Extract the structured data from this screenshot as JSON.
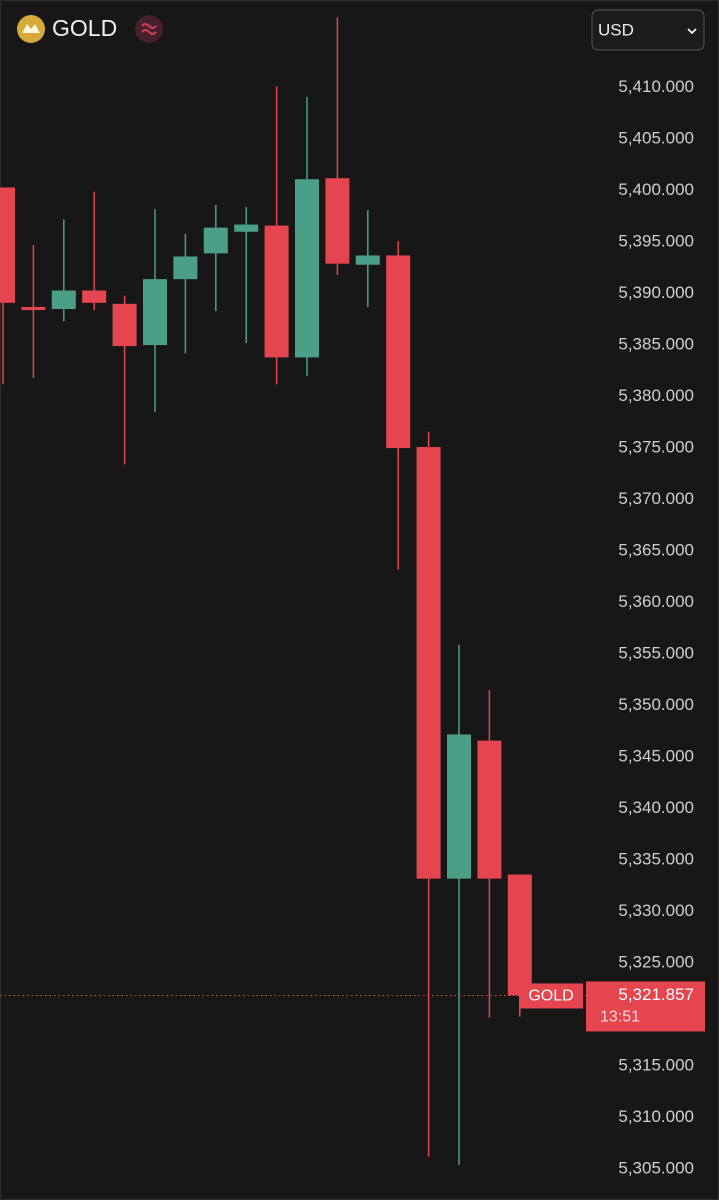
{
  "header": {
    "title": "GOLD",
    "currency": "USD"
  },
  "chart_data": {
    "type": "candlestick",
    "open": [
      5400.3,
      5388.7,
      5388.5,
      5390.3,
      5389.0,
      5385.0,
      5391.4,
      5393.9,
      5396.0,
      5396.6,
      5383.8,
      5401.2,
      5392.8,
      5393.7,
      5375.1,
      5333.2,
      5346.6,
      5333.6
    ],
    "high": [
      5400.3,
      5394.7,
      5397.2,
      5399.9,
      5389.8,
      5398.2,
      5395.8,
      5398.6,
      5398.4,
      5410.1,
      5409.1,
      5416.8,
      5398.1,
      5395.1,
      5376.6,
      5355.9,
      5351.5,
      5333.6
    ],
    "low": [
      5381.2,
      5381.8,
      5387.3,
      5388.4,
      5373.4,
      5378.5,
      5384.2,
      5388.3,
      5385.2,
      5381.2,
      5382.0,
      5391.8,
      5388.7,
      5363.2,
      5306.2,
      5305.4,
      5319.7,
      5319.8
    ],
    "close": [
      5389.1,
      5388.4,
      5390.3,
      5389.1,
      5384.9,
      5391.4,
      5393.6,
      5396.4,
      5396.7,
      5383.8,
      5401.1,
      5392.9,
      5393.7,
      5375.0,
      5333.2,
      5347.2,
      5333.2,
      5321.857
    ],
    "up_color": "#4c9f87",
    "down_color": "#e5454e",
    "ylim": [
      5302,
      5418.5
    ],
    "yticks": [
      {
        "value": 5410,
        "label": "5,410.000"
      },
      {
        "value": 5405,
        "label": "5,405.000"
      },
      {
        "value": 5400,
        "label": "5,400.000"
      },
      {
        "value": 5395,
        "label": "5,395.000"
      },
      {
        "value": 5390,
        "label": "5,390.000"
      },
      {
        "value": 5385,
        "label": "5,385.000"
      },
      {
        "value": 5380,
        "label": "5,380.000"
      },
      {
        "value": 5375,
        "label": "5,375.000"
      },
      {
        "value": 5370,
        "label": "5,370.000"
      },
      {
        "value": 5365,
        "label": "5,365.000"
      },
      {
        "value": 5360,
        "label": "5,360.000"
      },
      {
        "value": 5355,
        "label": "5,355.000"
      },
      {
        "value": 5350,
        "label": "5,350.000"
      },
      {
        "value": 5345,
        "label": "5,345.000"
      },
      {
        "value": 5340,
        "label": "5,340.000"
      },
      {
        "value": 5335,
        "label": "5,335.000"
      },
      {
        "value": 5330,
        "label": "5,330.000"
      },
      {
        "value": 5325,
        "label": "5,325.000"
      },
      {
        "value": 5315,
        "label": "5,315.000"
      },
      {
        "value": 5310,
        "label": "5,310.000"
      },
      {
        "value": 5305,
        "label": "5,305.000"
      }
    ],
    "grid": false,
    "price_marker": {
      "value": 5321.857,
      "label": "5,321.857",
      "symbol": "GOLD",
      "countdown": "13:51"
    }
  }
}
